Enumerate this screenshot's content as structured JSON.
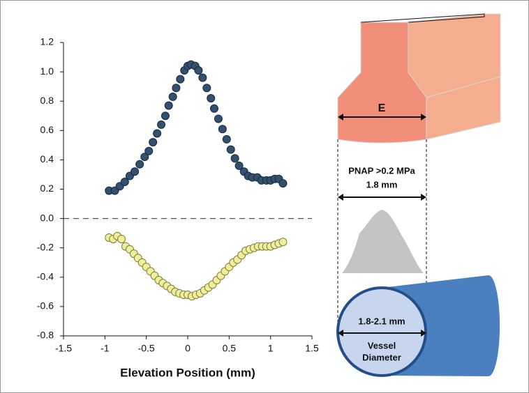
{
  "chart_data": {
    "type": "scatter",
    "xlabel": "Elevation Position (mm)",
    "xlim": [
      -1.5,
      1.5
    ],
    "xticks": [
      -1.5,
      -1,
      -0.5,
      0,
      0.5,
      1,
      1.5
    ],
    "ylim": [
      -0.8,
      1.2
    ],
    "yticks": [
      1.2,
      {
        "value": 1,
        "label": "1.0"
      },
      0.8,
      0.6,
      0.4,
      0.2,
      {
        "value": 0,
        "label": "0.0"
      },
      -0.2,
      -0.4,
      -0.6,
      -0.8
    ],
    "hline": 0,
    "series": [
      {
        "color": "#34506f",
        "edge_color": "#17283b",
        "x": [
          -0.95,
          -0.88,
          -0.82,
          -0.76,
          -0.7,
          -0.64,
          -0.58,
          -0.52,
          -0.47,
          -0.42,
          -0.37,
          -0.32,
          -0.27,
          -0.23,
          -0.18,
          -0.14,
          -0.09,
          -0.04,
          0,
          0.04,
          0.09,
          0.13,
          0.18,
          0.23,
          0.28,
          0.32,
          0.37,
          0.42,
          0.47,
          0.52,
          0.57,
          0.62,
          0.68,
          0.73,
          0.78,
          0.84,
          0.89,
          0.95,
          1,
          1.05,
          1.1,
          1.15
        ],
        "values": [
          0.19,
          0.19,
          0.22,
          0.25,
          0.29,
          0.32,
          0.37,
          0.42,
          0.46,
          0.52,
          0.58,
          0.64,
          0.7,
          0.77,
          0.83,
          0.89,
          0.95,
          1.01,
          1.04,
          1.05,
          1.04,
          1.01,
          0.96,
          0.89,
          0.82,
          0.75,
          0.68,
          0.61,
          0.54,
          0.47,
          0.41,
          0.36,
          0.32,
          0.29,
          0.28,
          0.28,
          0.26,
          0.26,
          0.26,
          0.27,
          0.27,
          0.24
        ]
      },
      {
        "color": "#eeee9c",
        "edge_color": "#7d7d3a",
        "x": [
          -0.95,
          -0.9,
          -0.85,
          -0.8,
          -0.75,
          -0.7,
          -0.65,
          -0.6,
          -0.55,
          -0.5,
          -0.45,
          -0.4,
          -0.35,
          -0.3,
          -0.25,
          -0.2,
          -0.15,
          -0.1,
          -0.05,
          0,
          0.05,
          0.1,
          0.15,
          0.2,
          0.25,
          0.3,
          0.35,
          0.4,
          0.45,
          0.5,
          0.55,
          0.6,
          0.65,
          0.7,
          0.75,
          0.8,
          0.85,
          0.9,
          0.95,
          1,
          1.05,
          1.1,
          1.15
        ],
        "values": [
          -0.13,
          -0.14,
          -0.12,
          -0.14,
          -0.19,
          -0.21,
          -0.24,
          -0.27,
          -0.3,
          -0.33,
          -0.36,
          -0.39,
          -0.42,
          -0.44,
          -0.46,
          -0.48,
          -0.5,
          -0.51,
          -0.52,
          -0.52,
          -0.53,
          -0.52,
          -0.51,
          -0.49,
          -0.47,
          -0.45,
          -0.42,
          -0.39,
          -0.36,
          -0.33,
          -0.3,
          -0.28,
          -0.25,
          -0.22,
          -0.21,
          -0.2,
          -0.19,
          -0.19,
          -0.19,
          -0.19,
          -0.18,
          -0.17,
          -0.16
        ]
      }
    ]
  },
  "diagram": {
    "width_label": "E",
    "pressure_label": "PNAP >0.2 MPa",
    "pressure_width": "1.8 mm",
    "vessel_size": "1.8-2.1 mm",
    "vessel_label": [
      "Vessel",
      "Diameter"
    ]
  }
}
